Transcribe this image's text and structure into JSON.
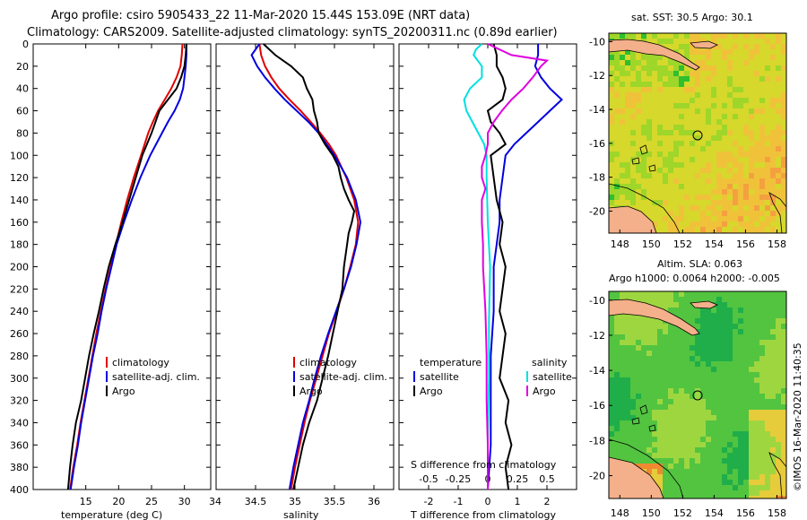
{
  "titles": {
    "line1": "Argo profile: csiro 5905433_22 11-Mar-2020 15.44S 153.09E (NRT data)",
    "line2": "Climatology: CARS2009. Satellite-adjusted climatology: synTS_20200311.nc (0.89d earlier)"
  },
  "colors": {
    "climatology": "#e00000",
    "satellite": "#0000e0",
    "argo": "#000000",
    "satellite_sal": "#00e0e0",
    "argo_sal": "#e000e0"
  },
  "chart_data": [
    {
      "type": "line",
      "panel": "temperature",
      "xlabel": "temperature (deg C)",
      "ylabel": "",
      "xlim": [
        7,
        34
      ],
      "ylim": [
        400,
        0
      ],
      "xticks": [
        "15",
        "20",
        "25",
        "30"
      ],
      "yticks": [
        "0",
        "20",
        "40",
        "60",
        "80",
        "100",
        "120",
        "140",
        "160",
        "180",
        "200",
        "220",
        "240",
        "260",
        "280",
        "300",
        "320",
        "340",
        "360",
        "380",
        "400"
      ],
      "legend": [
        "climatology",
        "satellite-adj. clim.",
        "Argo"
      ],
      "series": [
        {
          "name": "climatology",
          "depth": [
            0,
            10,
            20,
            30,
            40,
            50,
            60,
            70,
            80,
            100,
            120,
            140,
            160,
            180,
            200,
            220,
            240,
            260,
            280,
            300,
            320,
            340,
            360,
            380,
            400
          ],
          "values": [
            29.7,
            29.6,
            29.4,
            28.8,
            28.0,
            27.0,
            26.0,
            25.2,
            24.5,
            23.4,
            22.3,
            21.3,
            20.4,
            19.6,
            18.8,
            18.0,
            17.3,
            16.6,
            16.0,
            15.4,
            14.8,
            14.2,
            13.7,
            13.1,
            12.6
          ]
        },
        {
          "name": "satellite-adj. clim.",
          "depth": [
            0,
            10,
            20,
            30,
            40,
            50,
            60,
            70,
            80,
            100,
            120,
            140,
            160,
            180,
            200,
            220,
            240,
            260,
            280,
            300,
            320,
            340,
            360,
            380,
            400
          ],
          "values": [
            30.3,
            30.3,
            30.2,
            30.0,
            29.8,
            29.3,
            28.5,
            27.5,
            26.6,
            24.8,
            23.3,
            22.0,
            20.8,
            19.7,
            18.9,
            18.1,
            17.4,
            16.8,
            16.1,
            15.5,
            14.9,
            14.3,
            13.8,
            13.2,
            12.7
          ]
        },
        {
          "name": "Argo",
          "depth": [
            0,
            10,
            20,
            30,
            40,
            50,
            60,
            70,
            80,
            90,
            100,
            120,
            140,
            160,
            180,
            200,
            220,
            240,
            260,
            280,
            300,
            320,
            340,
            360,
            380,
            400
          ],
          "values": [
            30.3,
            30.2,
            30.0,
            29.5,
            28.8,
            27.5,
            26.2,
            25.6,
            25.0,
            24.3,
            23.6,
            22.6,
            21.6,
            20.6,
            19.5,
            18.5,
            17.7,
            17.0,
            16.2,
            15.5,
            14.9,
            14.3,
            13.5,
            13.0,
            12.6,
            12.3
          ]
        }
      ]
    },
    {
      "type": "line",
      "panel": "salinity",
      "xlabel": "salinity",
      "ylabel": "",
      "xlim": [
        34,
        36.25
      ],
      "ylim": [
        400,
        0
      ],
      "xticks": [
        "34",
        "34.5",
        "35",
        "35.5",
        "36"
      ],
      "legend": [
        "climatology",
        "satellite-adj. clim.",
        "Argo"
      ],
      "series": [
        {
          "name": "climatology",
          "depth": [
            0,
            10,
            20,
            30,
            40,
            50,
            60,
            70,
            80,
            90,
            100,
            120,
            140,
            160,
            180,
            200,
            220,
            240,
            260,
            280,
            300,
            320,
            340,
            360,
            380,
            400
          ],
          "values": [
            34.55,
            34.57,
            34.62,
            34.7,
            34.8,
            34.93,
            35.07,
            35.2,
            35.32,
            35.43,
            35.52,
            35.65,
            35.75,
            35.8,
            35.77,
            35.7,
            35.62,
            35.53,
            35.43,
            35.35,
            35.27,
            35.19,
            35.12,
            35.06,
            35.0,
            34.95
          ]
        },
        {
          "name": "satellite-adj. clim.",
          "depth": [
            0,
            5,
            10,
            20,
            30,
            40,
            50,
            60,
            70,
            80,
            90,
            100,
            120,
            140,
            160,
            180,
            200,
            220,
            240,
            260,
            280,
            300,
            320,
            340,
            360,
            380,
            400
          ],
          "values": [
            34.55,
            34.5,
            34.45,
            34.52,
            34.62,
            34.74,
            34.87,
            35.02,
            35.17,
            35.3,
            35.4,
            35.5,
            35.66,
            35.77,
            35.83,
            35.78,
            35.71,
            35.62,
            35.52,
            35.42,
            35.33,
            35.25,
            35.18,
            35.1,
            35.04,
            34.98,
            34.93
          ]
        },
        {
          "name": "Argo",
          "depth": [
            0,
            10,
            20,
            30,
            40,
            50,
            60,
            70,
            80,
            90,
            100,
            110,
            120,
            130,
            140,
            150,
            160,
            170,
            180,
            200,
            220,
            240,
            260,
            280,
            300,
            320,
            340,
            360,
            380,
            400
          ],
          "values": [
            34.6,
            34.75,
            34.95,
            35.1,
            35.15,
            35.22,
            35.24,
            35.28,
            35.3,
            35.38,
            35.48,
            35.55,
            35.58,
            35.62,
            35.68,
            35.75,
            35.72,
            35.68,
            35.66,
            35.62,
            35.6,
            35.54,
            35.48,
            35.42,
            35.35,
            35.28,
            35.18,
            35.1,
            35.04,
            34.98
          ]
        }
      ]
    },
    {
      "type": "line",
      "panel": "difference",
      "xlabel": "T difference from climatology",
      "top_label": "S difference from climatology",
      "xlim": [
        -3,
        3
      ],
      "xlim_top": [
        -0.75,
        0.75
      ],
      "ylim": [
        400,
        0
      ],
      "xticks": [
        "-2",
        "-1",
        "0",
        "1",
        "2"
      ],
      "xticks_top": [
        "-0.5",
        "-0.25",
        "0",
        "0.25",
        "0.5"
      ],
      "legend_left_title": "temperature",
      "legend_right_title": "salinity",
      "legend_left": [
        "satellite",
        "Argo"
      ],
      "legend_right": [
        "satellite",
        "Argo"
      ],
      "series": [
        {
          "name": "T satellite",
          "depth": [
            0,
            10,
            20,
            30,
            40,
            50,
            60,
            70,
            80,
            90,
            100,
            120,
            140,
            160,
            180,
            200,
            240,
            280,
            320,
            360,
            400
          ],
          "values": [
            1.7,
            1.7,
            1.6,
            1.8,
            2.1,
            2.5,
            2.1,
            1.7,
            1.3,
            0.9,
            0.6,
            0.5,
            0.4,
            0.4,
            0.3,
            0.2,
            0.2,
            0.1,
            0.1,
            0.1,
            0.0
          ]
        },
        {
          "name": "T Argo",
          "depth": [
            0,
            10,
            20,
            30,
            40,
            50,
            60,
            70,
            80,
            90,
            100,
            120,
            140,
            160,
            180,
            200,
            220,
            240,
            260,
            280,
            300,
            320,
            340,
            360,
            380,
            400
          ],
          "values": [
            0.2,
            0.3,
            0.3,
            0.5,
            0.6,
            0.5,
            0.0,
            0.1,
            0.4,
            0.6,
            0.1,
            0.2,
            0.3,
            0.5,
            0.4,
            0.6,
            0.5,
            0.4,
            0.6,
            0.5,
            0.4,
            0.7,
            0.6,
            0.8,
            0.6,
            0.7
          ]
        },
        {
          "name": "S satellite",
          "depth": [
            0,
            5,
            10,
            20,
            30,
            40,
            50,
            60,
            70,
            80,
            90,
            100,
            120,
            160,
            200,
            250,
            300,
            350,
            400
          ],
          "values": [
            -0.05,
            -0.1,
            -0.12,
            -0.05,
            -0.05,
            -0.15,
            -0.2,
            -0.18,
            -0.13,
            -0.08,
            -0.03,
            -0.01,
            -0.01,
            0.0,
            0.02,
            0.01,
            0.01,
            0.0,
            0.0
          ]
        },
        {
          "name": "S Argo",
          "depth": [
            0,
            10,
            15,
            20,
            30,
            40,
            50,
            60,
            70,
            80,
            90,
            100,
            110,
            120,
            130,
            140,
            150,
            160,
            180,
            200,
            240,
            280,
            320,
            360,
            400
          ],
          "values": [
            0.0,
            0.2,
            0.5,
            0.45,
            0.38,
            0.3,
            0.2,
            0.12,
            0.05,
            0.0,
            0.0,
            -0.02,
            -0.05,
            -0.05,
            -0.02,
            -0.05,
            -0.05,
            -0.05,
            -0.04,
            -0.04,
            -0.02,
            -0.01,
            -0.01,
            0.0,
            0.0
          ]
        }
      ]
    }
  ],
  "map_sst": {
    "title": "sat. SST: 30.5 Argo: 30.1",
    "xticks": [
      "148",
      "150",
      "152",
      "154",
      "156",
      "158"
    ],
    "yticks": [
      "-10",
      "-12",
      "-14",
      "-16",
      "-18",
      "-20"
    ]
  },
  "map_sla": {
    "title_line1": "Altim. SLA: 0.063",
    "title_line2": "Argo h1000: 0.0064 h2000: -0.005",
    "xticks": [
      "148",
      "150",
      "152",
      "154",
      "156",
      "158"
    ],
    "yticks": [
      "-10",
      "-12",
      "-14",
      "-16",
      "-18",
      "-20"
    ]
  },
  "credit": "©IMOS 16-Mar-2020 11:40:35"
}
